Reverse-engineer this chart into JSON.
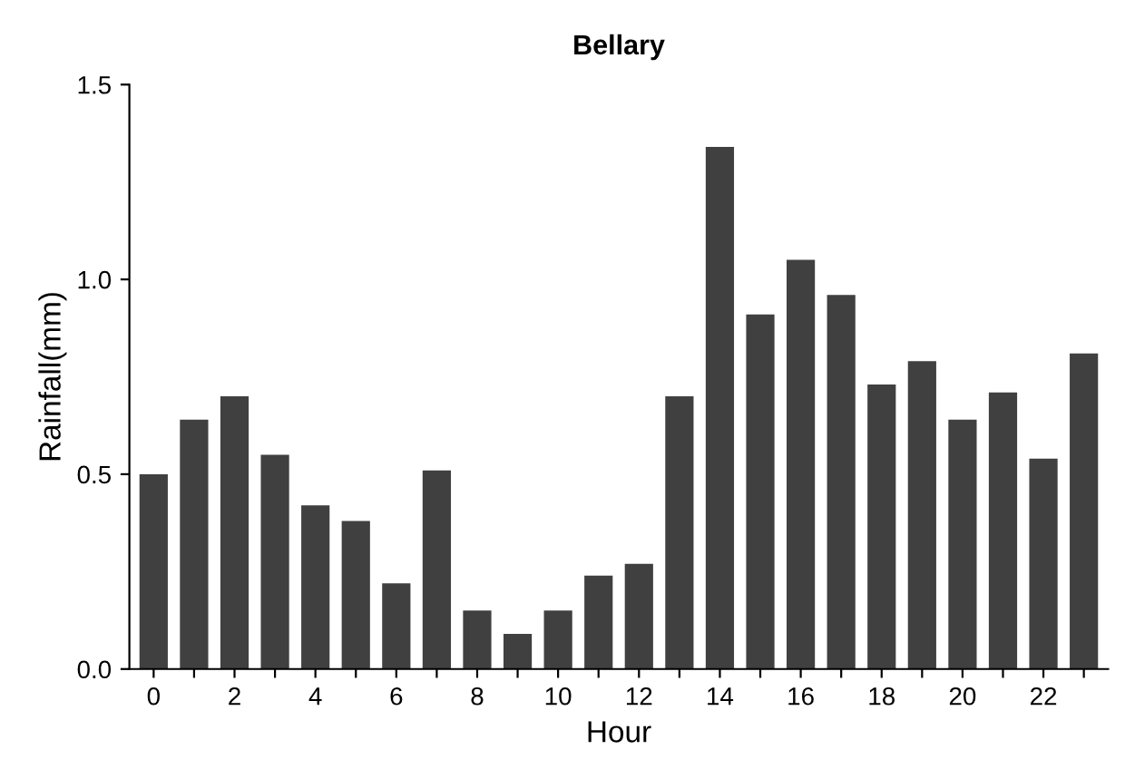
{
  "chart_data": {
    "type": "bar",
    "title": "Bellary",
    "xlabel": "Hour",
    "ylabel": "Rainfall(mm)",
    "categories": [
      "0",
      null,
      "2",
      null,
      "4",
      null,
      "6",
      null,
      "8",
      null,
      "10",
      null,
      "12",
      null,
      "14",
      null,
      "16",
      null,
      "18",
      null,
      "20",
      null,
      "22",
      null
    ],
    "values": [
      0.5,
      0.64,
      0.7,
      0.55,
      0.42,
      0.38,
      0.22,
      0.51,
      0.15,
      0.09,
      0.15,
      0.24,
      0.27,
      0.7,
      1.34,
      0.91,
      1.05,
      0.96,
      0.73,
      0.79,
      0.64,
      0.71,
      0.54,
      0.81
    ],
    "color": "#404040",
    "ylim": [
      0,
      1.5
    ],
    "yticks": [
      {
        "value": 0,
        "label": "0.0"
      },
      0.5,
      {
        "value": 1,
        "label": "1.0"
      },
      1.5
    ],
    "grid": false,
    "legend": false
  }
}
